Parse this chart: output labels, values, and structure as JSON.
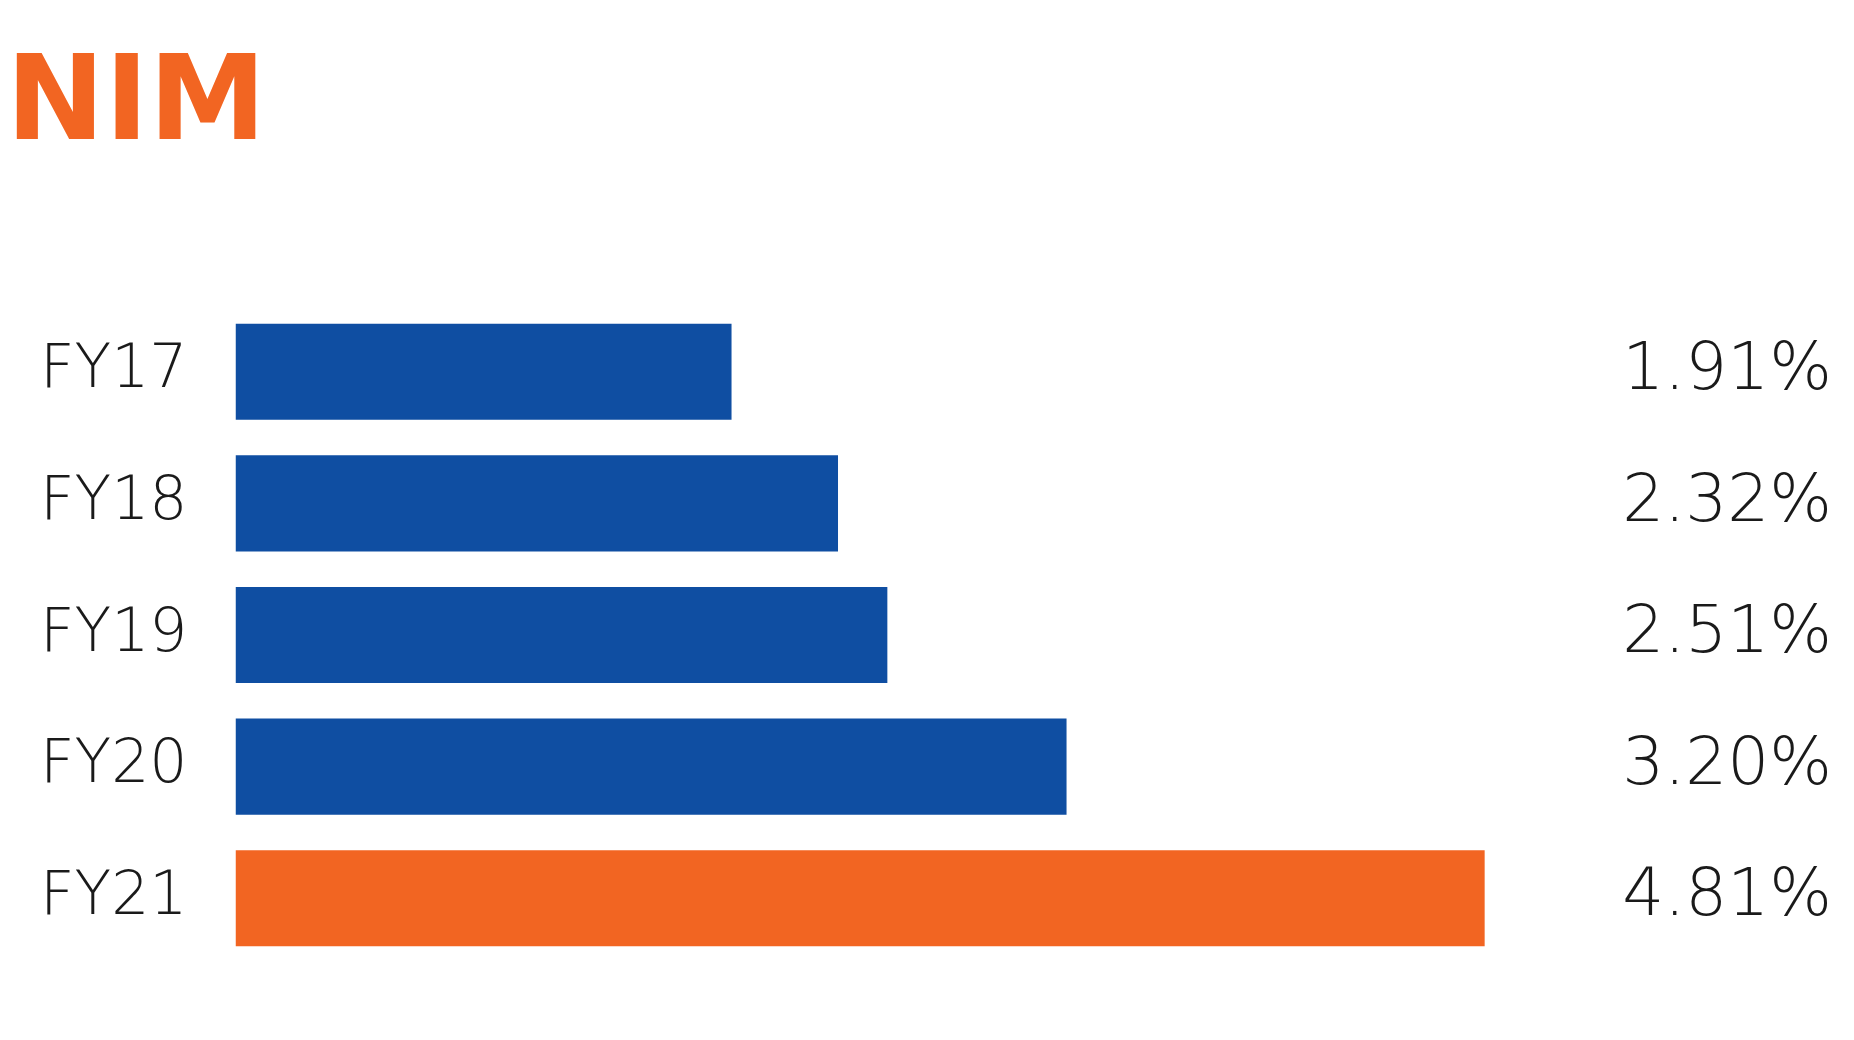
{
  "chart_data": {
    "type": "bar",
    "orientation": "horizontal",
    "title": "NIM",
    "categories": [
      "FY17",
      "FY18",
      "FY19",
      "FY20",
      "FY21"
    ],
    "values": [
      1.91,
      2.32,
      2.51,
      3.2,
      4.81
    ],
    "colors": [
      "#0f4ea2",
      "#0f4ea2",
      "#0f4ea2",
      "#0f4ea2",
      "#f26522"
    ],
    "value_labels": [
      "1.91%",
      "2.32%",
      "2.51%",
      "3.20%",
      "4.81%"
    ]
  }
}
